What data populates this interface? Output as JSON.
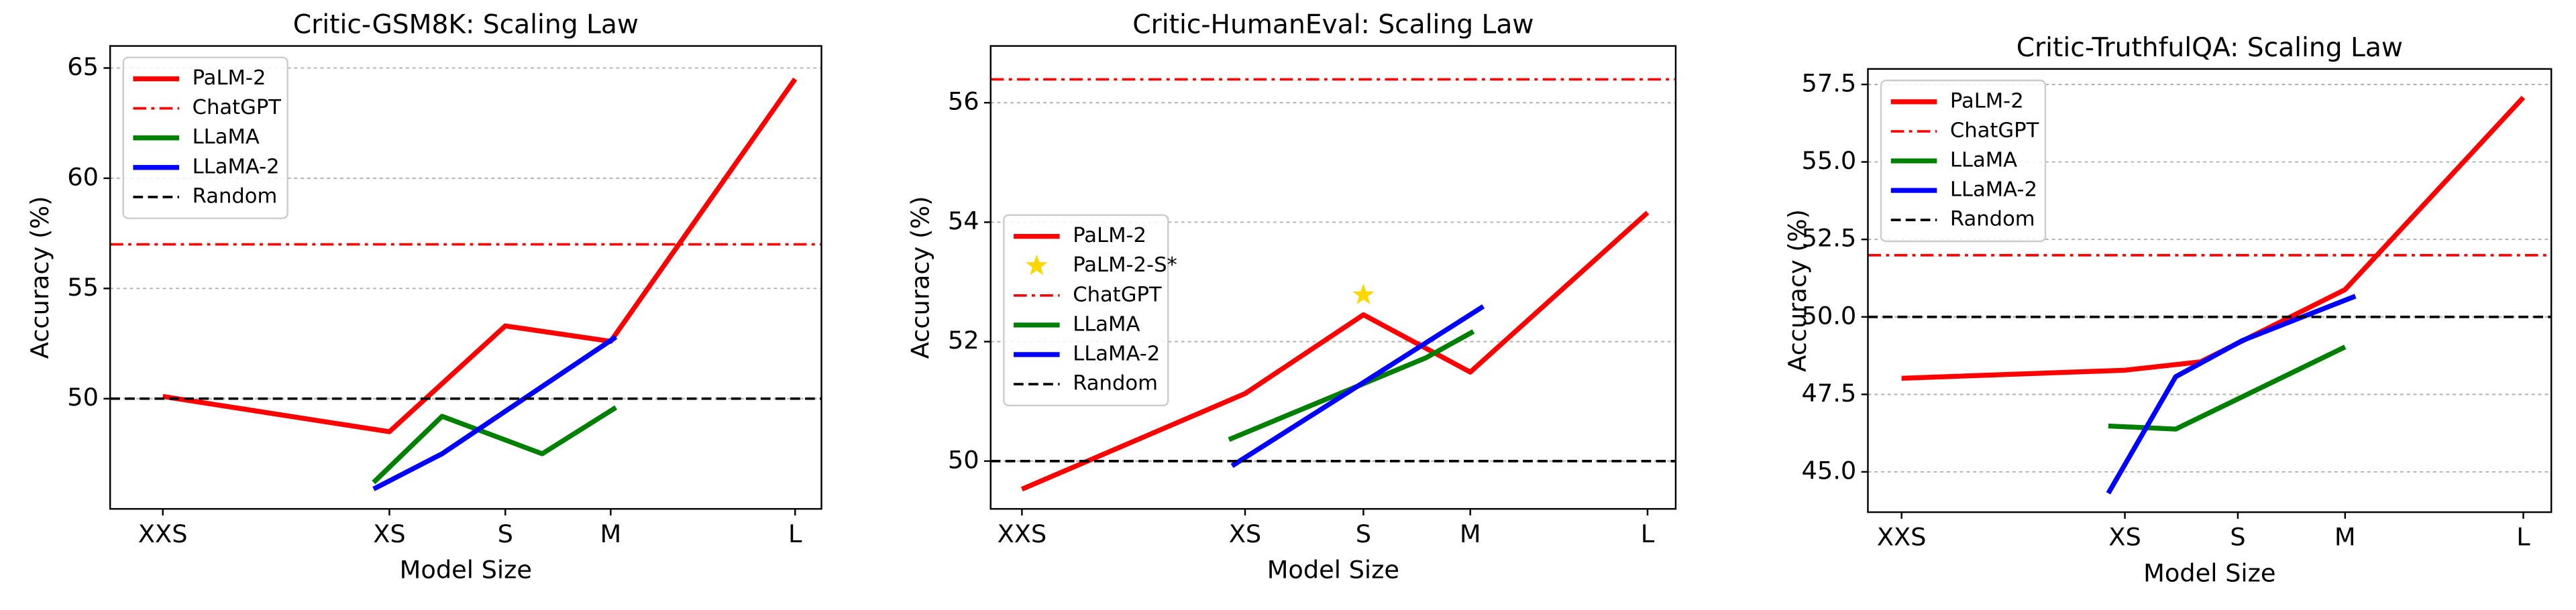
{
  "chart_data": [
    {
      "type": "line",
      "title": "Critic-GSM8K: Scaling Law",
      "xlabel": "Model Size",
      "ylabel": "Accuracy (%)",
      "xlim": [
        -1,
        12.5
      ],
      "ylim": [
        45,
        66
      ],
      "grid": true,
      "legend": "upper left",
      "xticks": [
        {
          "value": 0,
          "label": "XXS"
        },
        {
          "value": 4.3,
          "label": "XS"
        },
        {
          "value": 6.5,
          "label": "S"
        },
        {
          "value": 8.5,
          "label": "M"
        },
        {
          "value": 12,
          "label": "L"
        }
      ],
      "yticks": [
        50,
        55,
        60,
        65
      ],
      "series": [
        {
          "name": "PaLM-2",
          "color": "#ff0000",
          "style": "solid",
          "x": [
            0,
            4.3,
            6.5,
            8.5,
            12
          ],
          "values": [
            50.1,
            48.5,
            53.3,
            52.6,
            64.5
          ]
        },
        {
          "name": "ChatGPT",
          "color": "#ff0000",
          "style": "dashdot",
          "value": 57
        },
        {
          "name": "LLaMA",
          "color": "#008000",
          "style": "solid",
          "x": [
            4.0,
            5.3,
            7.2,
            8.6
          ],
          "values": [
            46.2,
            49.2,
            47.5,
            49.6
          ]
        },
        {
          "name": "LLaMA-2",
          "color": "#0000ff",
          "style": "solid",
          "x": [
            4.0,
            5.3,
            8.6
          ],
          "values": [
            45.9,
            47.5,
            52.8
          ]
        },
        {
          "name": "Random",
          "color": "#000000",
          "style": "dashed",
          "value": 50
        }
      ]
    },
    {
      "type": "line",
      "title": "Critic-HumanEval: Scaling Law",
      "xlabel": "Model Size",
      "ylabel": "Accuracy (%)",
      "xlim": [
        -0.6,
        12.54
      ],
      "ylim": [
        49.2,
        56.95
      ],
      "grid": true,
      "legend": "center left",
      "xticks": [
        {
          "value": 0,
          "label": "XXS"
        },
        {
          "value": 4.28,
          "label": "XS"
        },
        {
          "value": 6.55,
          "label": "S"
        },
        {
          "value": 8.6,
          "label": "M"
        },
        {
          "value": 12,
          "label": "L"
        }
      ],
      "yticks": [
        50,
        52,
        54,
        56
      ],
      "series": [
        {
          "name": "PaLM-2",
          "color": "#ff0000",
          "style": "solid",
          "x": [
            0,
            4.28,
            6.55,
            8.6,
            12
          ],
          "values": [
            49.53,
            51.13,
            52.45,
            51.49,
            54.16
          ]
        },
        {
          "name": "PaLM-2-S*",
          "color": "#ffd700",
          "style": "star",
          "x": [
            6.55
          ],
          "values": [
            52.78
          ]
        },
        {
          "name": "ChatGPT",
          "color": "#ff0000",
          "style": "dashdot",
          "value": 56.39
        },
        {
          "name": "LLaMA",
          "color": "#008000",
          "style": "solid",
          "x": [
            3.97,
            7.75,
            8.66
          ],
          "values": [
            50.36,
            51.73,
            52.17
          ]
        },
        {
          "name": "LLaMA-2",
          "color": "#0000ff",
          "style": "solid",
          "x": [
            4.03,
            8.85
          ],
          "values": [
            49.92,
            52.59
          ]
        },
        {
          "name": "Random",
          "color": "#000000",
          "style": "dashed",
          "value": 50
        }
      ]
    },
    {
      "type": "line",
      "title": "Critic-TruthfulQA: Scaling Law",
      "xlabel": "Model Size",
      "ylabel": "Accuracy (%)",
      "xlim": [
        -0.65,
        12.54
      ],
      "ylim": [
        43.7,
        58
      ],
      "grid": true,
      "legend": "upper left",
      "xticks": [
        {
          "value": 0,
          "label": "XXS"
        },
        {
          "value": 4.31,
          "label": "XS"
        },
        {
          "value": 6.49,
          "label": "S"
        },
        {
          "value": 8.56,
          "label": "M"
        },
        {
          "value": 12,
          "label": "L"
        }
      ],
      "yticks": [
        {
          "value": 45,
          "label": "45.0"
        },
        47.5,
        {
          "value": 50,
          "label": "50.0"
        },
        52.5,
        {
          "value": 55,
          "label": "55.0"
        },
        57.5
      ],
      "series": [
        {
          "name": "PaLM-2",
          "color": "#ff0000",
          "style": "solid",
          "x": [
            0,
            4.31,
            5.77,
            8.56,
            12
          ],
          "values": [
            48.02,
            48.28,
            48.55,
            50.88,
            57.08
          ]
        },
        {
          "name": "ChatGPT",
          "color": "#ff0000",
          "style": "dashdot",
          "value": 51.99
        },
        {
          "name": "LLaMA",
          "color": "#008000",
          "style": "solid",
          "x": [
            3.99,
            5.29,
            8.56
          ],
          "values": [
            46.48,
            46.38,
            49.03
          ]
        },
        {
          "name": "LLaMA-2",
          "color": "#0000ff",
          "style": "solid",
          "x": [
            3.99,
            5.29,
            6.58,
            8.76
          ],
          "values": [
            44.31,
            48.07,
            49.24,
            50.67
          ]
        },
        {
          "name": "Random",
          "color": "#000000",
          "style": "dashed",
          "value": 50
        }
      ]
    }
  ]
}
